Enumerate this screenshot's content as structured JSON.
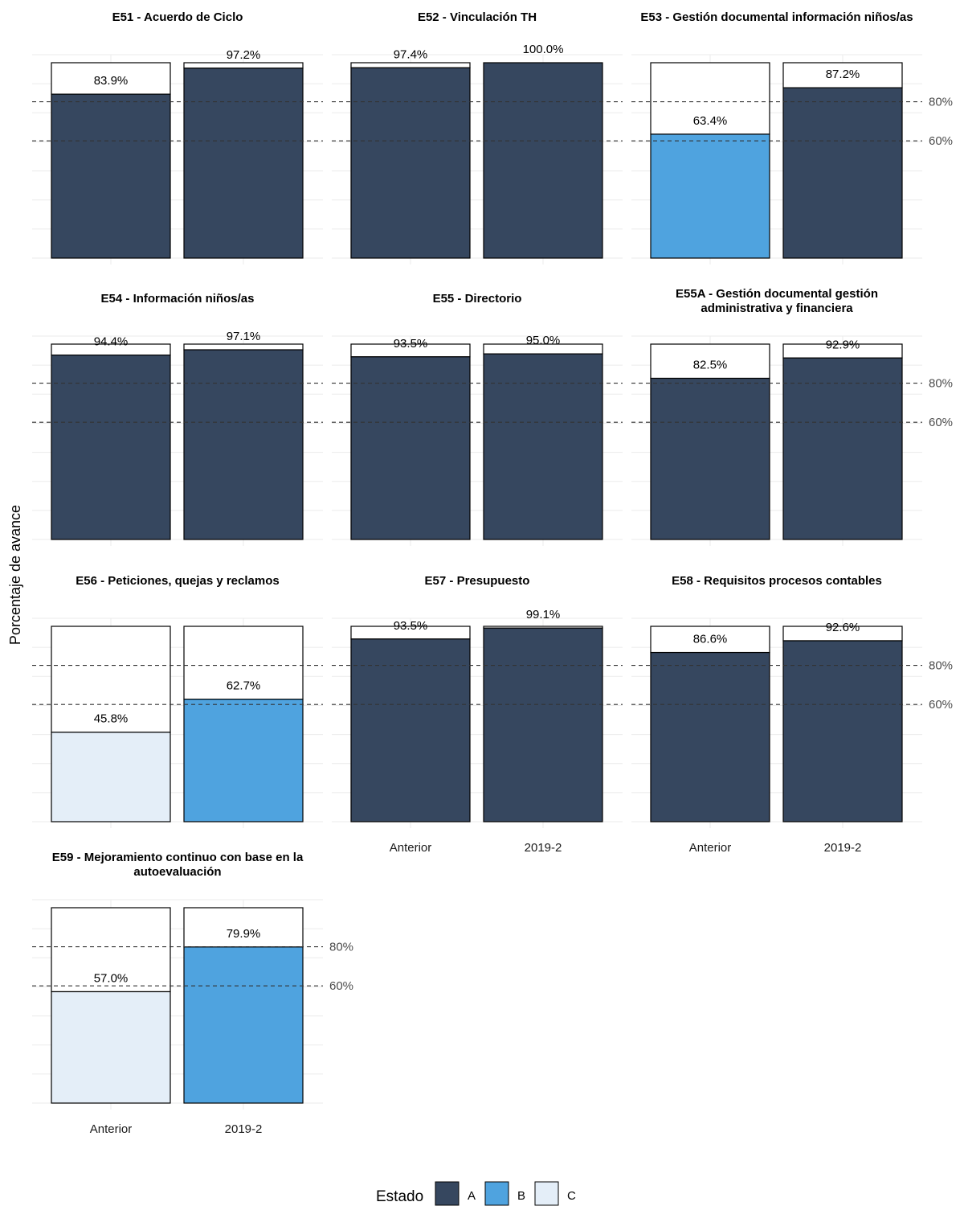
{
  "chart_data": {
    "type": "bar",
    "facet": "wrap",
    "y_axis_label": "Porcentaje de avance",
    "categories": [
      "Anterior",
      "2019-2"
    ],
    "ylim": [
      0,
      100
    ],
    "reference_lines": [
      {
        "value": 80,
        "label": "80%",
        "style": "dashed"
      },
      {
        "value": 60,
        "label": "60%",
        "style": "dashed"
      }
    ],
    "legend": {
      "title": "Estado",
      "position": "bottom",
      "items": [
        {
          "key": "A",
          "color": "#36475f"
        },
        {
          "key": "B",
          "color": "#4fa3df"
        },
        {
          "key": "C",
          "color": "#e4eef8"
        }
      ]
    },
    "remainder_color": "#ffffff",
    "panels": [
      {
        "title": [
          "E51 - Acuerdo de Ciclo"
        ],
        "bars": [
          {
            "category": "Anterior",
            "value": 83.9,
            "label": "83.9%",
            "estado": "A"
          },
          {
            "category": "2019-2",
            "value": 97.2,
            "label": "97.2%",
            "estado": "A"
          }
        ]
      },
      {
        "title": [
          "E52 - Vinculación TH"
        ],
        "bars": [
          {
            "category": "Anterior",
            "value": 97.4,
            "label": "97.4%",
            "estado": "A"
          },
          {
            "category": "2019-2",
            "value": 100.0,
            "label": "100.0%",
            "estado": "A"
          }
        ]
      },
      {
        "title": [
          "E53 - Gestión documental información niños/as"
        ],
        "bars": [
          {
            "category": "Anterior",
            "value": 63.4,
            "label": "63.4%",
            "estado": "B"
          },
          {
            "category": "2019-2",
            "value": 87.2,
            "label": "87.2%",
            "estado": "A"
          }
        ]
      },
      {
        "title": [
          "E54 - Información niños/as"
        ],
        "bars": [
          {
            "category": "Anterior",
            "value": 94.4,
            "label": "94.4%",
            "estado": "A"
          },
          {
            "category": "2019-2",
            "value": 97.1,
            "label": "97.1%",
            "estado": "A"
          }
        ]
      },
      {
        "title": [
          "E55 - Directorio"
        ],
        "bars": [
          {
            "category": "Anterior",
            "value": 93.5,
            "label": "93.5%",
            "estado": "A"
          },
          {
            "category": "2019-2",
            "value": 95.0,
            "label": "95.0%",
            "estado": "A"
          }
        ]
      },
      {
        "title": [
          "E55A - Gestión documental gestión",
          "administrativa y financiera"
        ],
        "bars": [
          {
            "category": "Anterior",
            "value": 82.5,
            "label": "82.5%",
            "estado": "A"
          },
          {
            "category": "2019-2",
            "value": 92.9,
            "label": "92.9%",
            "estado": "A"
          }
        ]
      },
      {
        "title": [
          "E56 - Peticiones, quejas y reclamos"
        ],
        "bars": [
          {
            "category": "Anterior",
            "value": 45.8,
            "label": "45.8%",
            "estado": "C"
          },
          {
            "category": "2019-2",
            "value": 62.7,
            "label": "62.7%",
            "estado": "B"
          }
        ]
      },
      {
        "title": [
          "E57 - Presupuesto"
        ],
        "bars": [
          {
            "category": "Anterior",
            "value": 93.5,
            "label": "93.5%",
            "estado": "A"
          },
          {
            "category": "2019-2",
            "value": 99.1,
            "label": "99.1%",
            "estado": "A"
          }
        ]
      },
      {
        "title": [
          "E58 - Requisitos procesos contables"
        ],
        "bars": [
          {
            "category": "Anterior",
            "value": 86.6,
            "label": "86.6%",
            "estado": "A"
          },
          {
            "category": "2019-2",
            "value": 92.6,
            "label": "92.6%",
            "estado": "A"
          }
        ]
      },
      {
        "title": [
          "E59 - Mejoramiento continuo con base en la",
          "autoevaluación"
        ],
        "bars": [
          {
            "category": "Anterior",
            "value": 57.0,
            "label": "57.0%",
            "estado": "C"
          },
          {
            "category": "2019-2",
            "value": 79.9,
            "label": "79.9%",
            "estado": "B"
          }
        ]
      }
    ]
  }
}
